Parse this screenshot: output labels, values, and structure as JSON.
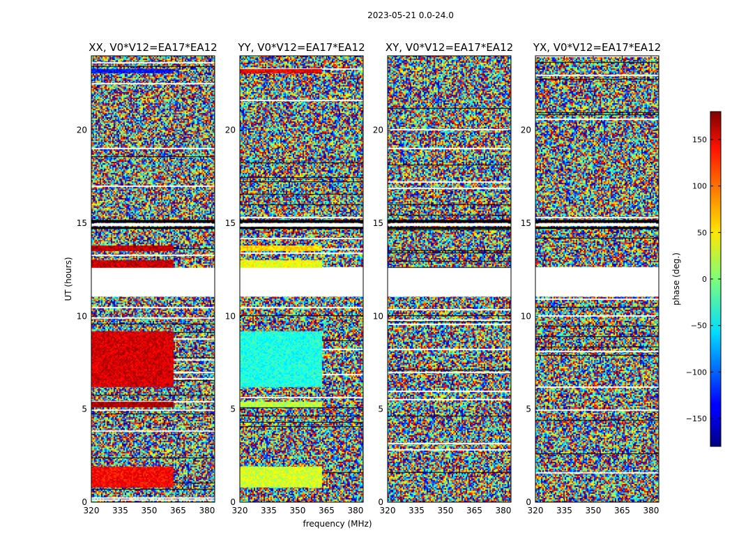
{
  "figure_title": "2023-05-21 0.0-24.0",
  "chart_data": {
    "type": "heatmap",
    "xlabel": "frequency (MHz)",
    "ylabel": "UT (hours)",
    "xlim": [
      320,
      384
    ],
    "ylim": [
      0,
      24
    ],
    "xticks": [
      320,
      335,
      350,
      365,
      380
    ],
    "yticks": [
      0,
      5,
      10,
      15,
      20
    ],
    "panels": [
      {
        "title": "XX, V0*V12=EA17*EA12",
        "pol": "XX"
      },
      {
        "title": "YY, V0*V12=EA17*EA12",
        "pol": "YY"
      },
      {
        "title": "XY, V0*V12=EA17*EA12",
        "pol": "XY"
      },
      {
        "title": "YX, V0*V12=EA17*EA12",
        "pol": "YX"
      }
    ],
    "colorbar": {
      "label": "phase (deg.)",
      "range": [
        -180,
        180
      ],
      "ticks": [
        -150,
        -100,
        -50,
        0,
        50,
        100,
        150
      ],
      "colormap": "jet"
    },
    "flagged_time_ranges": [
      [
        11.05,
        12.6
      ],
      [
        14.85,
        15.0
      ]
    ],
    "coherent_phase_blocks": [
      {
        "pol": "XX",
        "t": [
          12.6,
          13.0
        ],
        "f": [
          320,
          362
        ],
        "phase": 155
      },
      {
        "pol": "XX",
        "t": [
          13.5,
          13.8
        ],
        "f": [
          320,
          362
        ],
        "phase": 160
      },
      {
        "pol": "XX",
        "t": [
          6.2,
          9.2
        ],
        "f": [
          320,
          362
        ],
        "phase": 150
      },
      {
        "pol": "XX",
        "t": [
          5.1,
          5.4
        ],
        "f": [
          320,
          362
        ],
        "phase": 165
      },
      {
        "pol": "XX",
        "t": [
          0.8,
          1.9
        ],
        "f": [
          320,
          362
        ],
        "phase": 135
      },
      {
        "pol": "XX",
        "t": [
          23.1,
          23.3
        ],
        "f": [
          320,
          362
        ],
        "phase": -130
      },
      {
        "pol": "YY",
        "t": [
          12.6,
          13.0
        ],
        "f": [
          320,
          362
        ],
        "phase": 40
      },
      {
        "pol": "YY",
        "t": [
          13.5,
          13.8
        ],
        "f": [
          320,
          362
        ],
        "phase": 60
      },
      {
        "pol": "YY",
        "t": [
          6.2,
          9.2
        ],
        "f": [
          320,
          362
        ],
        "phase": -35
      },
      {
        "pol": "YY",
        "t": [
          5.1,
          5.4
        ],
        "f": [
          320,
          362
        ],
        "phase": 20
      },
      {
        "pol": "YY",
        "t": [
          0.8,
          1.9
        ],
        "f": [
          320,
          362
        ],
        "phase": 30
      },
      {
        "pol": "YY",
        "t": [
          23.1,
          23.3
        ],
        "f": [
          320,
          362
        ],
        "phase": 140
      }
    ]
  }
}
